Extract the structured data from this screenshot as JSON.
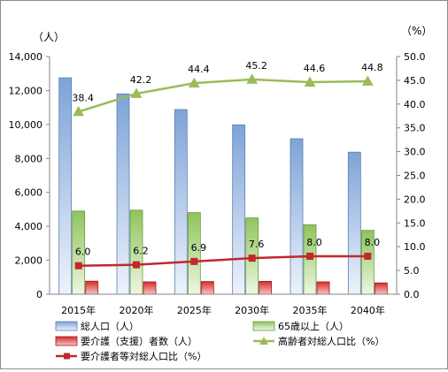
{
  "chart_data": {
    "type": "bar",
    "categories": [
      "2015年",
      "2020年",
      "2025年",
      "2030年",
      "2035年",
      "2040年"
    ],
    "left_unit": "（人）",
    "right_unit": "（%）",
    "y_left": {
      "ylim": [
        0,
        14000
      ],
      "ticks": [
        "0",
        "2,000",
        "4,000",
        "6,000",
        "8,000",
        "10,000",
        "12,000",
        "14,000"
      ]
    },
    "y_right": {
      "ylim": [
        0,
        50
      ],
      "ticks": [
        "0.0",
        "5.0",
        "10.0",
        "15.0",
        "20.0",
        "25.0",
        "30.0",
        "35.0",
        "40.0",
        "45.0",
        "50.0"
      ]
    },
    "grid": false,
    "legend_position": "bottom",
    "series": [
      {
        "name": "総人口（人）",
        "type": "bar",
        "axis": "left",
        "color": "#7ea3d8",
        "values": [
          12750,
          11800,
          10880,
          9980,
          9160,
          8370
        ]
      },
      {
        "name": "65歳以上（人）",
        "type": "bar",
        "axis": "left",
        "color": "#8fc45a",
        "values": [
          4900,
          4950,
          4810,
          4500,
          4090,
          3760
        ]
      },
      {
        "name": "要介護（支援）者数（人）",
        "type": "bar",
        "axis": "left",
        "color": "#d92b2b",
        "values": [
          770,
          730,
          750,
          760,
          730,
          670
        ]
      },
      {
        "name": "高齢者対総人口比（%）",
        "type": "line",
        "axis": "right",
        "color": "#9bbb59",
        "marker": "triangle",
        "values": [
          38.4,
          42.2,
          44.4,
          45.2,
          44.6,
          44.8
        ],
        "labels": [
          "38.4",
          "42.2",
          "44.4",
          "45.2",
          "44.6",
          "44.8"
        ]
      },
      {
        "name": "要介護者等対総人口比（%）",
        "type": "line",
        "axis": "right",
        "color": "#c0282d",
        "marker": "square",
        "values": [
          6.0,
          6.2,
          6.9,
          7.6,
          8.0,
          8.0
        ],
        "labels": [
          "6.0",
          "6.2",
          "6.9",
          "7.6",
          "8.0",
          "8.0"
        ]
      }
    ]
  }
}
